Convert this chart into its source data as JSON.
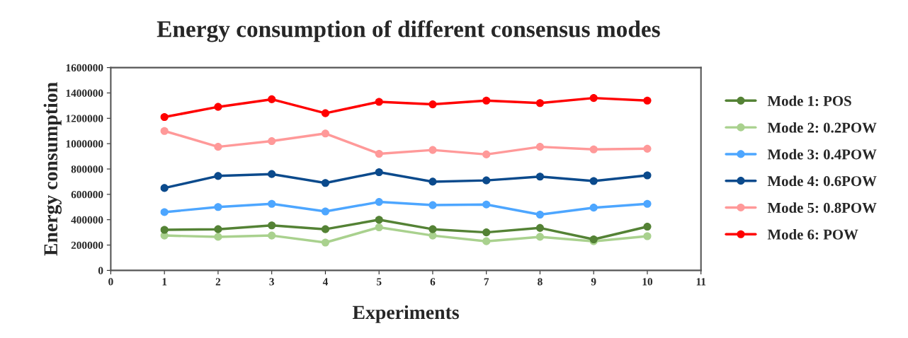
{
  "chart_data": {
    "type": "line",
    "title": "Energy consumption of different consensus modes",
    "xlabel": "Experiments",
    "ylabel": "Energy consumption",
    "x": [
      1,
      2,
      3,
      4,
      5,
      6,
      7,
      8,
      9,
      10
    ],
    "xlim": [
      0,
      11
    ],
    "xticks": [
      0,
      1,
      2,
      3,
      4,
      5,
      6,
      7,
      8,
      9,
      10,
      11
    ],
    "ylim": [
      0,
      1600000
    ],
    "yticks": [
      0,
      200000,
      400000,
      600000,
      800000,
      1000000,
      1200000,
      1400000,
      1600000
    ],
    "grid": false,
    "legend": "right",
    "marker": "circle",
    "line_style": "solid",
    "series": [
      {
        "name": "Mode 1: POS",
        "color": "#548235",
        "values": [
          320000,
          325000,
          355000,
          325000,
          400000,
          325000,
          300000,
          335000,
          245000,
          345000
        ]
      },
      {
        "name": "Mode 2: 0.2POW",
        "color": "#a9d18e",
        "values": [
          275000,
          265000,
          275000,
          220000,
          340000,
          275000,
          230000,
          265000,
          230000,
          270000
        ]
      },
      {
        "name": "Mode 3: 0.4POW",
        "color": "#4da6ff",
        "values": [
          460000,
          500000,
          525000,
          465000,
          540000,
          515000,
          520000,
          440000,
          495000,
          525000
        ]
      },
      {
        "name": "Mode 4: 0.6POW",
        "color": "#0b4a8c",
        "values": [
          650000,
          745000,
          760000,
          690000,
          775000,
          700000,
          710000,
          740000,
          705000,
          750000
        ]
      },
      {
        "name": "Mode 5: 0.8POW",
        "color": "#ff9999",
        "values": [
          1100000,
          975000,
          1020000,
          1080000,
          920000,
          950000,
          915000,
          975000,
          955000,
          960000
        ]
      },
      {
        "name": "Mode 6: POW",
        "color": "#ff0000",
        "values": [
          1210000,
          1290000,
          1350000,
          1240000,
          1330000,
          1310000,
          1340000,
          1320000,
          1360000,
          1340000
        ]
      }
    ]
  }
}
